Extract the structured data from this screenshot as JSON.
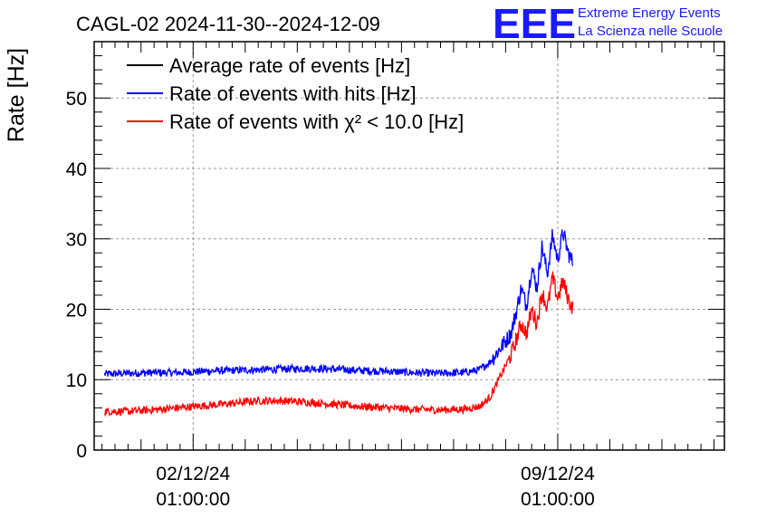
{
  "chart_data": {
    "type": "line",
    "title": "CAGL-02 2024-11-30--2024-12-09",
    "ylabel": "Rate [Hz]",
    "xlabel": "",
    "ylim": [
      0,
      58
    ],
    "yticks": [
      0,
      10,
      20,
      30,
      40,
      50
    ],
    "xlim": [
      -1.9,
      10.2
    ],
    "xticks": [
      {
        "x": 0,
        "label_line1": "02/12/24",
        "label_line2": "01:00:00"
      },
      {
        "x": 7,
        "label_line1": "09/12/24",
        "label_line2": "01:00:00"
      }
    ],
    "x_units": "days since 02/12/24 01:00:00",
    "grid": true,
    "legend_position": "top-left",
    "series": [
      {
        "name": "Average rate of events [Hz]",
        "color": "#000000",
        "x": [],
        "values": []
      },
      {
        "name": "Rate of events with hits [Hz]",
        "color": "#0000ff",
        "x": [
          -1.7,
          -1.3,
          -0.8,
          -0.3,
          0.2,
          0.7,
          1.2,
          1.7,
          2.2,
          2.7,
          3.2,
          3.7,
          4.2,
          4.7,
          5.2,
          5.5,
          5.7,
          5.9,
          6.1,
          6.2,
          6.3,
          6.4,
          6.5,
          6.6,
          6.7,
          6.8,
          6.9,
          7.0,
          7.1,
          7.2,
          7.3
        ],
        "values": [
          10.8,
          10.9,
          11.0,
          11.0,
          11.2,
          11.3,
          11.4,
          11.5,
          11.6,
          11.5,
          11.3,
          11.2,
          11.0,
          10.9,
          11.0,
          11.4,
          12.5,
          14.5,
          16.5,
          19.5,
          23.0,
          20.5,
          26.0,
          23.0,
          29.0,
          25.0,
          30.5,
          27.0,
          31.0,
          28.0,
          26.5
        ]
      },
      {
        "name": "Rate of events with χ² < 10.0 [Hz]",
        "color": "#ff0000",
        "x": [
          -1.7,
          -1.3,
          -0.8,
          -0.3,
          0.2,
          0.7,
          1.2,
          1.7,
          2.2,
          2.7,
          3.2,
          3.7,
          4.2,
          4.7,
          5.2,
          5.5,
          5.7,
          5.9,
          6.1,
          6.2,
          6.3,
          6.4,
          6.5,
          6.6,
          6.7,
          6.8,
          6.9,
          7.0,
          7.1,
          7.2,
          7.3
        ],
        "values": [
          5.5,
          5.5,
          5.7,
          6.0,
          6.3,
          6.6,
          7.0,
          7.0,
          6.8,
          6.5,
          6.2,
          6.0,
          5.8,
          5.7,
          5.8,
          6.2,
          7.5,
          10.5,
          13.5,
          15.5,
          18.0,
          16.5,
          20.0,
          18.0,
          22.5,
          20.0,
          24.5,
          21.5,
          24.0,
          21.5,
          20.0
        ]
      }
    ]
  },
  "logo": {
    "mark": "EEE",
    "line1": "Extreme Energy Events",
    "line2": "La Scienza nelle Scuole"
  }
}
